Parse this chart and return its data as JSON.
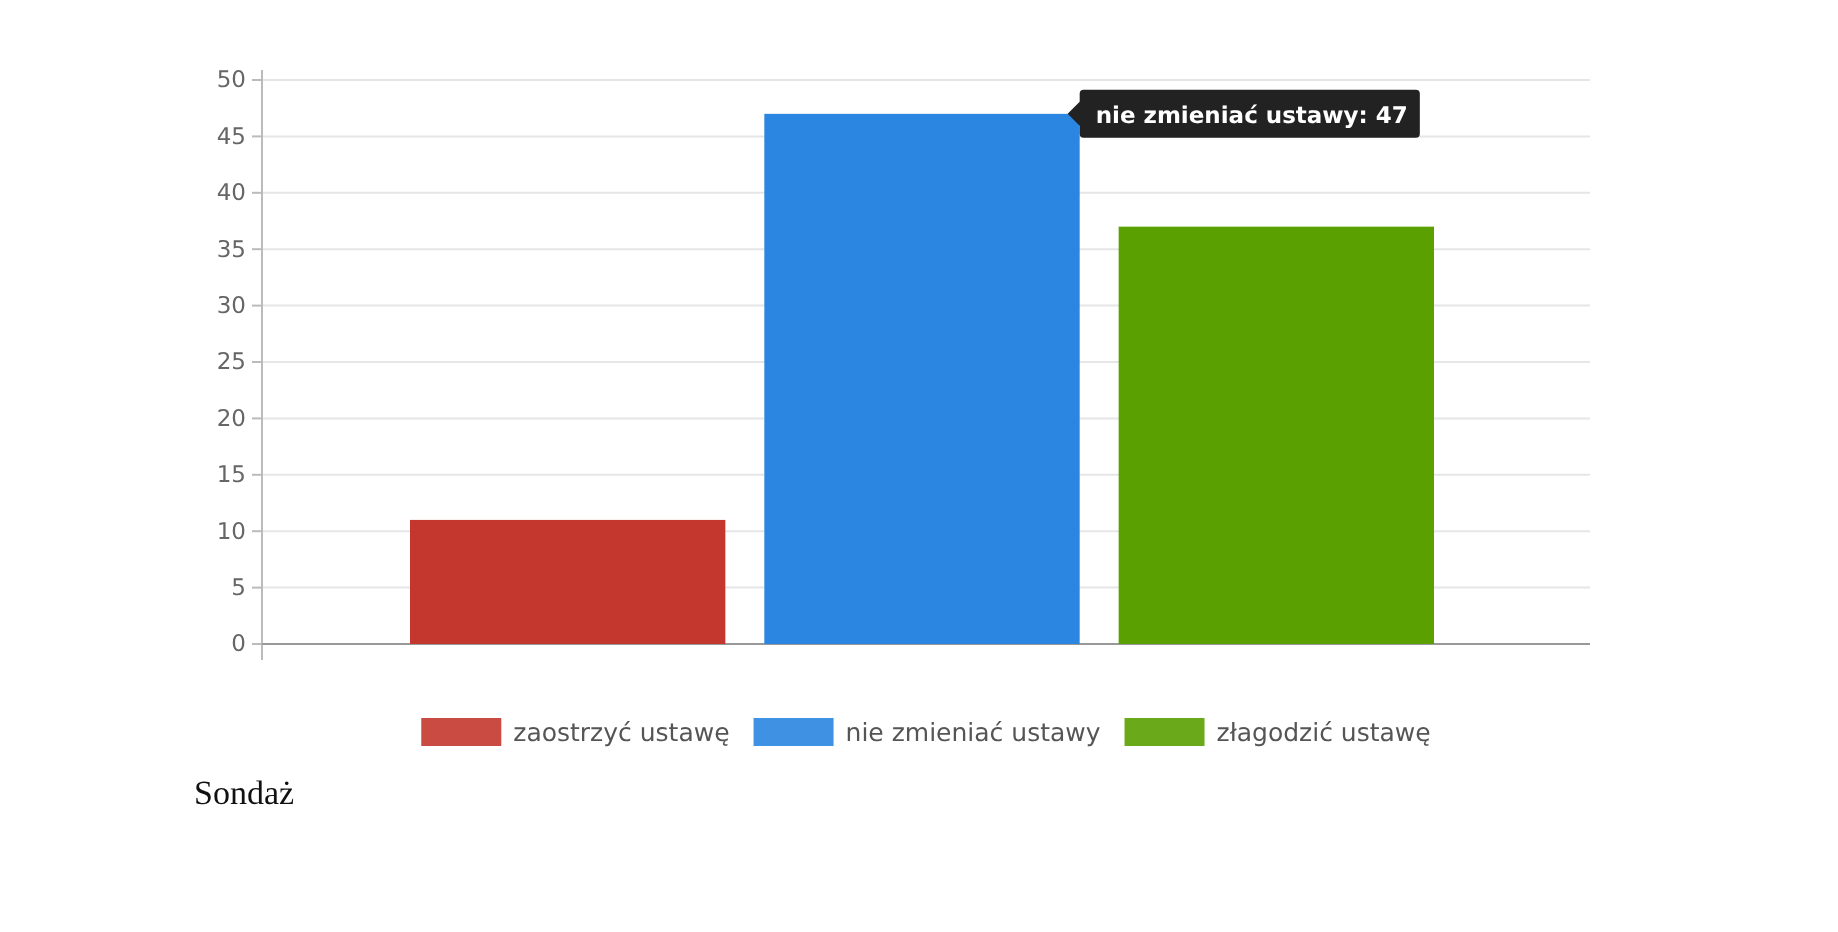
{
  "chart_data": {
    "type": "bar",
    "categories": [
      null
    ],
    "series": [
      {
        "name": "zaostrzyć ustawę",
        "color": "#c4372e",
        "values": [
          11
        ]
      },
      {
        "name": "nie zmieniać ustawy",
        "color": "#2a86e0",
        "values": [
          47
        ]
      },
      {
        "name": "złagodzić ustawę",
        "color": "#5aa000",
        "values": [
          37
        ]
      }
    ],
    "ylim": [
      0,
      50
    ],
    "yticks": [
      0,
      5,
      10,
      15,
      20,
      25,
      30,
      35,
      40,
      45,
      50
    ],
    "grid": "y",
    "legend": "bottom",
    "tick_labels": "y",
    "annotations": [
      "nie zmieniać ustawy: 47",
      "Sondaż"
    ]
  }
}
